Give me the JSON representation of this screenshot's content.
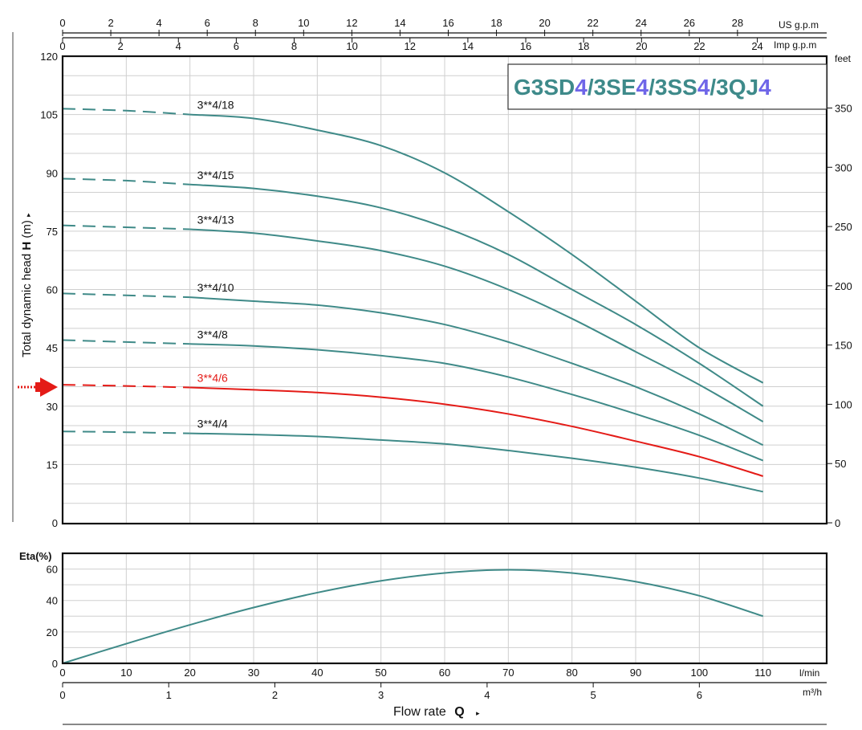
{
  "chart_data": [
    {
      "type": "line",
      "title": "G3SD4/3SE4/3SS4/3QJ4",
      "title_parts": [
        "G3SD",
        "4",
        "/3SE",
        "4",
        "/3SS",
        "4",
        "/3QJ",
        "4"
      ],
      "ylabel_text": "Total dynamic head",
      "ylabel_symbol": "H",
      "ylabel_unit": "(m)",
      "ylim": [
        0,
        120
      ],
      "y_ticks": [
        0,
        15,
        30,
        45,
        60,
        75,
        90,
        105,
        120
      ],
      "xlim": [
        0,
        120
      ],
      "right_axis": {
        "label": "feet",
        "ticks": [
          0,
          50,
          100,
          150,
          200,
          250,
          300,
          350
        ]
      },
      "top_axis_us": {
        "label": "US g.p.m",
        "ticks": [
          0,
          2,
          4,
          6,
          8,
          10,
          12,
          14,
          16,
          18,
          20,
          22,
          24,
          26,
          28
        ]
      },
      "top_axis_imp": {
        "label": "Imp g.p.m",
        "ticks": [
          0,
          2,
          4,
          6,
          8,
          10,
          12,
          14,
          16,
          18,
          20,
          22,
          24
        ]
      },
      "grid": true,
      "dashed_until_x": 20,
      "series": [
        {
          "name": "3**4/18",
          "color": "#3f8a88",
          "x": [
            0,
            10,
            20,
            30,
            40,
            50,
            60,
            70,
            80,
            90,
            100,
            110
          ],
          "y": [
            106.5,
            106,
            105,
            104,
            101,
            97,
            90,
            80,
            69,
            57,
            45,
            36
          ]
        },
        {
          "name": "3**4/15",
          "color": "#3f8a88",
          "x": [
            0,
            10,
            20,
            30,
            40,
            50,
            60,
            70,
            80,
            90,
            100,
            110
          ],
          "y": [
            88.5,
            88,
            87,
            86,
            84,
            81,
            76,
            69,
            60,
            51,
            41,
            30
          ]
        },
        {
          "name": "3**4/13",
          "color": "#3f8a88",
          "x": [
            0,
            10,
            20,
            30,
            40,
            50,
            60,
            70,
            80,
            90,
            100,
            110
          ],
          "y": [
            76.5,
            76,
            75.5,
            74.5,
            72.5,
            70,
            66,
            60,
            52.5,
            44,
            35.5,
            26
          ]
        },
        {
          "name": "3**4/10",
          "color": "#3f8a88",
          "x": [
            0,
            10,
            20,
            30,
            40,
            50,
            60,
            70,
            80,
            90,
            100,
            110
          ],
          "y": [
            59,
            58.5,
            58,
            57,
            56,
            54,
            51,
            46.5,
            41,
            35,
            28,
            20
          ]
        },
        {
          "name": "3**4/8",
          "color": "#3f8a88",
          "x": [
            0,
            10,
            20,
            30,
            40,
            50,
            60,
            70,
            80,
            90,
            100,
            110
          ],
          "y": [
            47,
            46.5,
            46,
            45.5,
            44.5,
            43,
            41,
            37.5,
            33,
            28,
            22.5,
            16
          ]
        },
        {
          "name": "3**4/6",
          "color": "#e41b17",
          "highlight": true,
          "x": [
            0,
            10,
            20,
            30,
            40,
            50,
            60,
            70,
            80,
            90,
            100,
            110
          ],
          "y": [
            35.5,
            35.2,
            34.8,
            34.2,
            33.5,
            32.3,
            30.5,
            28,
            24.8,
            21,
            17,
            12
          ]
        },
        {
          "name": "3**4/4",
          "color": "#3f8a88",
          "x": [
            0,
            10,
            20,
            30,
            40,
            50,
            60,
            70,
            80,
            90,
            100,
            110
          ],
          "y": [
            23.5,
            23.3,
            23,
            22.7,
            22.2,
            21.3,
            20.3,
            18.6,
            16.6,
            14.3,
            11.5,
            8
          ]
        }
      ]
    },
    {
      "type": "line",
      "ylabel": "Eta(%)",
      "ylim": [
        0,
        70
      ],
      "y_ticks": [
        0,
        20,
        40,
        60
      ],
      "xlim": [
        0,
        120
      ],
      "grid": true,
      "series": [
        {
          "color": "#3f8a88",
          "x": [
            0,
            10,
            20,
            30,
            40,
            50,
            60,
            70,
            80,
            90,
            100,
            110
          ],
          "y": [
            0,
            12.5,
            24.5,
            35.5,
            45,
            52.5,
            57.5,
            59.5,
            57.5,
            52,
            43,
            30
          ]
        }
      ]
    }
  ],
  "bottom_axes": {
    "lmin": {
      "label": "l/min",
      "ticks": [
        0,
        10,
        20,
        30,
        40,
        50,
        60,
        70,
        80,
        90,
        100,
        110
      ]
    },
    "m3h": {
      "label": "m³/h",
      "ticks": [
        0,
        1,
        2,
        3,
        4,
        5,
        6
      ]
    }
  },
  "xlabel": {
    "text": "Flow rate",
    "symbol": "Q"
  },
  "colors": {
    "teal": "#3f8a88",
    "red": "#e41b17",
    "title_teal": "#3e8a8a",
    "title_blue": "#6f66e8"
  }
}
